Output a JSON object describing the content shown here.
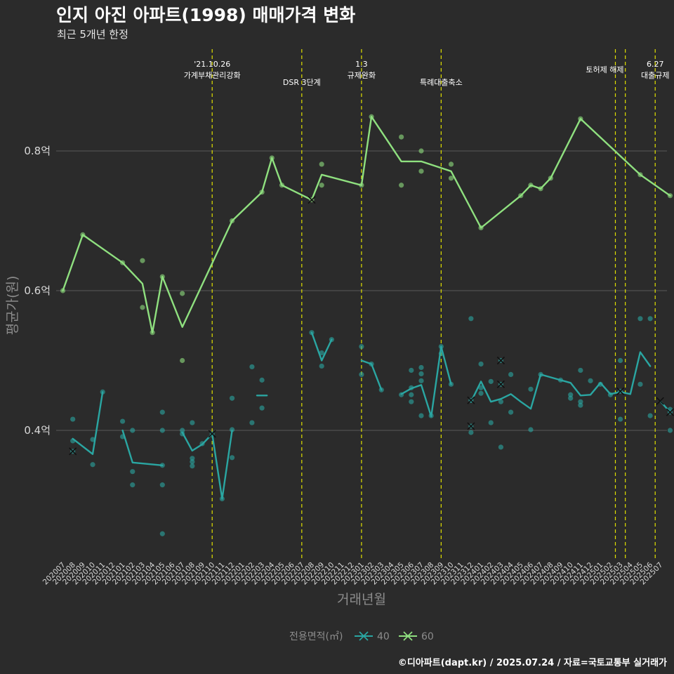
{
  "header": {
    "title": "인지 아진 아파트(1998) 매매가격 변화",
    "subtitle": "최근 5개년 한정"
  },
  "caption": "©디아파트(dapt.kr) / 2025.07.24 / 자료=국토교통부 실거래가",
  "colors": {
    "background": "#2b2b2b",
    "grid": "#5a5a5a",
    "series_40": "#2aa6a2",
    "series_60": "#8fe07f",
    "event_line": "#e0e000"
  },
  "chart_data": {
    "type": "line",
    "xlabel": "거래년월",
    "ylabel": "평균가(원)",
    "ylim": [
      0.22,
      0.98
    ],
    "y_ticks": [
      {
        "value": 0.4,
        "label": "0.4억"
      },
      {
        "value": 0.6,
        "label": "0.6억"
      },
      {
        "value": 0.8,
        "label": "0.8억"
      }
    ],
    "grid": true,
    "x_labels": [
      "202007",
      "202008",
      "202009",
      "202010",
      "202011",
      "202012",
      "202101",
      "202102",
      "202103",
      "202104",
      "202105",
      "202106",
      "202107",
      "202108",
      "202109",
      "202110",
      "202111",
      "202112",
      "202201",
      "202202",
      "202203",
      "202204",
      "202205",
      "202206",
      "202207",
      "202208",
      "202209",
      "202210",
      "202211",
      "202212",
      "202301",
      "202302",
      "202303",
      "202304",
      "202305",
      "202306",
      "202307",
      "202308",
      "202309",
      "202310",
      "202311",
      "202312",
      "202401",
      "202402",
      "202403",
      "202404",
      "202405",
      "202406",
      "202407",
      "202408",
      "202409",
      "202410",
      "202411",
      "202412",
      "202501",
      "202502",
      "202503",
      "202504",
      "202505",
      "202506",
      "202507"
    ],
    "events": [
      {
        "x": 15,
        "lines": [
          "'21.10.26",
          "가계부채관리강화"
        ]
      },
      {
        "x": 24,
        "lines": [
          "DSR 3단계"
        ]
      },
      {
        "x": 30,
        "lines": [
          "1.3",
          "규제완화"
        ]
      },
      {
        "x": 38,
        "lines": [
          "특례대출축소"
        ]
      },
      {
        "x": 55.5,
        "lines": [
          "토허제 해제"
        ]
      },
      {
        "x": 56.5,
        "lines": []
      },
      {
        "x": 59.5,
        "lines": [
          "6.27",
          "대출규제"
        ]
      }
    ],
    "legend": {
      "title": "전용면적(㎡)",
      "position": "bottom"
    },
    "series": [
      {
        "name": "40",
        "segments": [
          [
            [
              1,
              0.388
            ],
            [
              3,
              0.366
            ],
            [
              4,
              0.455
            ]
          ],
          [
            [
              6,
              0.4
            ],
            [
              7,
              0.354
            ],
            [
              10,
              0.35
            ]
          ],
          [
            [
              12,
              0.397
            ],
            [
              13,
              0.371
            ],
            [
              14,
              0.38
            ],
            [
              15,
              0.395
            ],
            [
              16,
              0.302
            ],
            [
              17,
              0.4
            ]
          ],
          [
            [
              19.5,
              0.45
            ],
            [
              20.5,
              0.45
            ]
          ],
          [
            [
              25,
              0.54
            ],
            [
              26,
              0.5
            ],
            [
              27,
              0.53
            ]
          ],
          [
            [
              30,
              0.5
            ],
            [
              31,
              0.495
            ],
            [
              32,
              0.458
            ]
          ],
          [
            [
              34,
              0.452
            ],
            [
              35,
              0.46
            ],
            [
              36,
              0.465
            ],
            [
              37,
              0.42
            ],
            [
              38,
              0.52
            ],
            [
              39,
              0.466
            ]
          ],
          [
            [
              41,
              0.441
            ],
            [
              42,
              0.47
            ],
            [
              43,
              0.441
            ],
            [
              44,
              0.445
            ],
            [
              45,
              0.452
            ],
            [
              46,
              0.441
            ],
            [
              47,
              0.431
            ],
            [
              48,
              0.48
            ],
            [
              49,
              0.476
            ],
            [
              50,
              0.472
            ],
            [
              51,
              0.468
            ],
            [
              52,
              0.45
            ],
            [
              53,
              0.451
            ],
            [
              54,
              0.468
            ],
            [
              55,
              0.452
            ],
            [
              56,
              0.455
            ],
            [
              57,
              0.452
            ],
            [
              58,
              0.512
            ],
            [
              59,
              0.492
            ]
          ],
          [
            [
              60,
              0.442
            ],
            [
              61,
              0.426
            ]
          ]
        ],
        "points": [
          [
            1,
            0.416
          ],
          [
            1,
            0.385
          ],
          [
            1,
            0.37
          ],
          [
            3,
            0.387
          ],
          [
            3,
            0.351
          ],
          [
            4,
            0.455
          ],
          [
            6,
            0.413
          ],
          [
            6,
            0.391
          ],
          [
            7,
            0.4
          ],
          [
            7,
            0.341
          ],
          [
            7,
            0.322
          ],
          [
            10,
            0.426
          ],
          [
            10,
            0.4
          ],
          [
            10,
            0.35
          ],
          [
            10,
            0.322
          ],
          [
            10,
            0.252
          ],
          [
            12,
            0.4
          ],
          [
            12,
            0.395
          ],
          [
            13,
            0.411
          ],
          [
            13,
            0.36
          ],
          [
            13,
            0.355
          ],
          [
            13,
            0.349
          ],
          [
            14,
            0.381
          ],
          [
            15,
            0.395
          ],
          [
            16,
            0.302
          ],
          [
            17,
            0.446
          ],
          [
            17,
            0.401
          ],
          [
            17,
            0.361
          ],
          [
            19,
            0.491
          ],
          [
            19,
            0.411
          ],
          [
            20,
            0.472
          ],
          [
            20,
            0.432
          ],
          [
            25,
            0.54
          ],
          [
            26,
            0.511
          ],
          [
            26,
            0.492
          ],
          [
            27,
            0.53
          ],
          [
            30,
            0.52
          ],
          [
            30,
            0.48
          ],
          [
            31,
            0.495
          ],
          [
            32,
            0.458
          ],
          [
            34,
            0.451
          ],
          [
            35,
            0.486
          ],
          [
            35,
            0.461
          ],
          [
            35,
            0.451
          ],
          [
            35,
            0.441
          ],
          [
            36,
            0.49
          ],
          [
            36,
            0.481
          ],
          [
            36,
            0.471
          ],
          [
            36,
            0.421
          ],
          [
            37,
            0.421
          ],
          [
            38,
            0.52
          ],
          [
            38,
            0.51
          ],
          [
            39,
            0.466
          ],
          [
            41,
            0.56
          ],
          [
            41,
            0.443
          ],
          [
            41,
            0.406
          ],
          [
            41,
            0.397
          ],
          [
            42,
            0.495
          ],
          [
            42,
            0.461
          ],
          [
            42,
            0.453
          ],
          [
            43,
            0.47
          ],
          [
            43,
            0.411
          ],
          [
            44,
            0.5
          ],
          [
            44,
            0.466
          ],
          [
            44,
            0.441
          ],
          [
            44,
            0.376
          ],
          [
            45,
            0.48
          ],
          [
            45,
            0.426
          ],
          [
            47,
            0.459
          ],
          [
            47,
            0.401
          ],
          [
            48,
            0.48
          ],
          [
            50,
            0.472
          ],
          [
            51,
            0.451
          ],
          [
            51,
            0.446
          ],
          [
            52,
            0.486
          ],
          [
            52,
            0.441
          ],
          [
            52,
            0.436
          ],
          [
            53,
            0.471
          ],
          [
            54,
            0.466
          ],
          [
            55,
            0.451
          ],
          [
            56,
            0.5
          ],
          [
            56,
            0.456
          ],
          [
            56,
            0.416
          ],
          [
            58,
            0.56
          ],
          [
            58,
            0.466
          ],
          [
            59,
            0.56
          ],
          [
            59,
            0.421
          ],
          [
            61,
            0.43
          ],
          [
            61,
            0.426
          ],
          [
            61,
            0.4
          ]
        ],
        "crosses": [
          [
            1,
            0.37
          ],
          [
            15,
            0.395
          ],
          [
            41,
            0.443
          ],
          [
            41,
            0.406
          ],
          [
            44,
            0.5
          ],
          [
            44,
            0.466
          ],
          [
            56,
            0.456
          ],
          [
            60,
            0.442
          ],
          [
            61,
            0.426
          ]
        ]
      },
      {
        "name": "60",
        "segments": [
          [
            [
              0,
              0.6
            ],
            [
              2,
              0.68
            ],
            [
              6,
              0.64
            ],
            [
              8,
              0.61
            ],
            [
              9,
              0.54
            ],
            [
              10,
              0.62
            ],
            [
              12,
              0.548
            ],
            [
              17,
              0.7
            ],
            [
              20,
              0.741
            ],
            [
              21,
              0.79
            ],
            [
              22,
              0.751
            ],
            [
              25,
              0.73
            ],
            [
              26,
              0.766
            ],
            [
              30,
              0.751
            ],
            [
              31,
              0.849
            ],
            [
              34,
              0.785
            ],
            [
              36,
              0.785
            ],
            [
              39,
              0.771
            ],
            [
              42,
              0.69
            ],
            [
              46,
              0.736
            ],
            [
              47,
              0.751
            ],
            [
              48,
              0.746
            ],
            [
              49,
              0.761
            ],
            [
              52,
              0.846
            ],
            [
              58,
              0.766
            ],
            [
              61,
              0.736
            ]
          ]
        ],
        "points": [
          [
            0,
            0.6
          ],
          [
            2,
            0.68
          ],
          [
            6,
            0.64
          ],
          [
            8,
            0.643
          ],
          [
            8,
            0.576
          ],
          [
            9,
            0.54
          ],
          [
            10,
            0.62
          ],
          [
            12,
            0.596
          ],
          [
            12,
            0.5
          ],
          [
            17,
            0.7
          ],
          [
            20,
            0.741
          ],
          [
            21,
            0.79
          ],
          [
            22,
            0.751
          ],
          [
            25,
            0.73
          ],
          [
            26,
            0.781
          ],
          [
            26,
            0.751
          ],
          [
            30,
            0.751
          ],
          [
            31,
            0.849
          ],
          [
            34,
            0.82
          ],
          [
            34,
            0.751
          ],
          [
            36,
            0.8
          ],
          [
            36,
            0.771
          ],
          [
            39,
            0.781
          ],
          [
            39,
            0.761
          ],
          [
            42,
            0.69
          ],
          [
            46,
            0.736
          ],
          [
            47,
            0.751
          ],
          [
            48,
            0.746
          ],
          [
            49,
            0.761
          ],
          [
            52,
            0.846
          ],
          [
            58,
            0.766
          ],
          [
            61,
            0.736
          ]
        ],
        "crosses": [
          [
            25,
            0.73
          ]
        ]
      }
    ]
  }
}
